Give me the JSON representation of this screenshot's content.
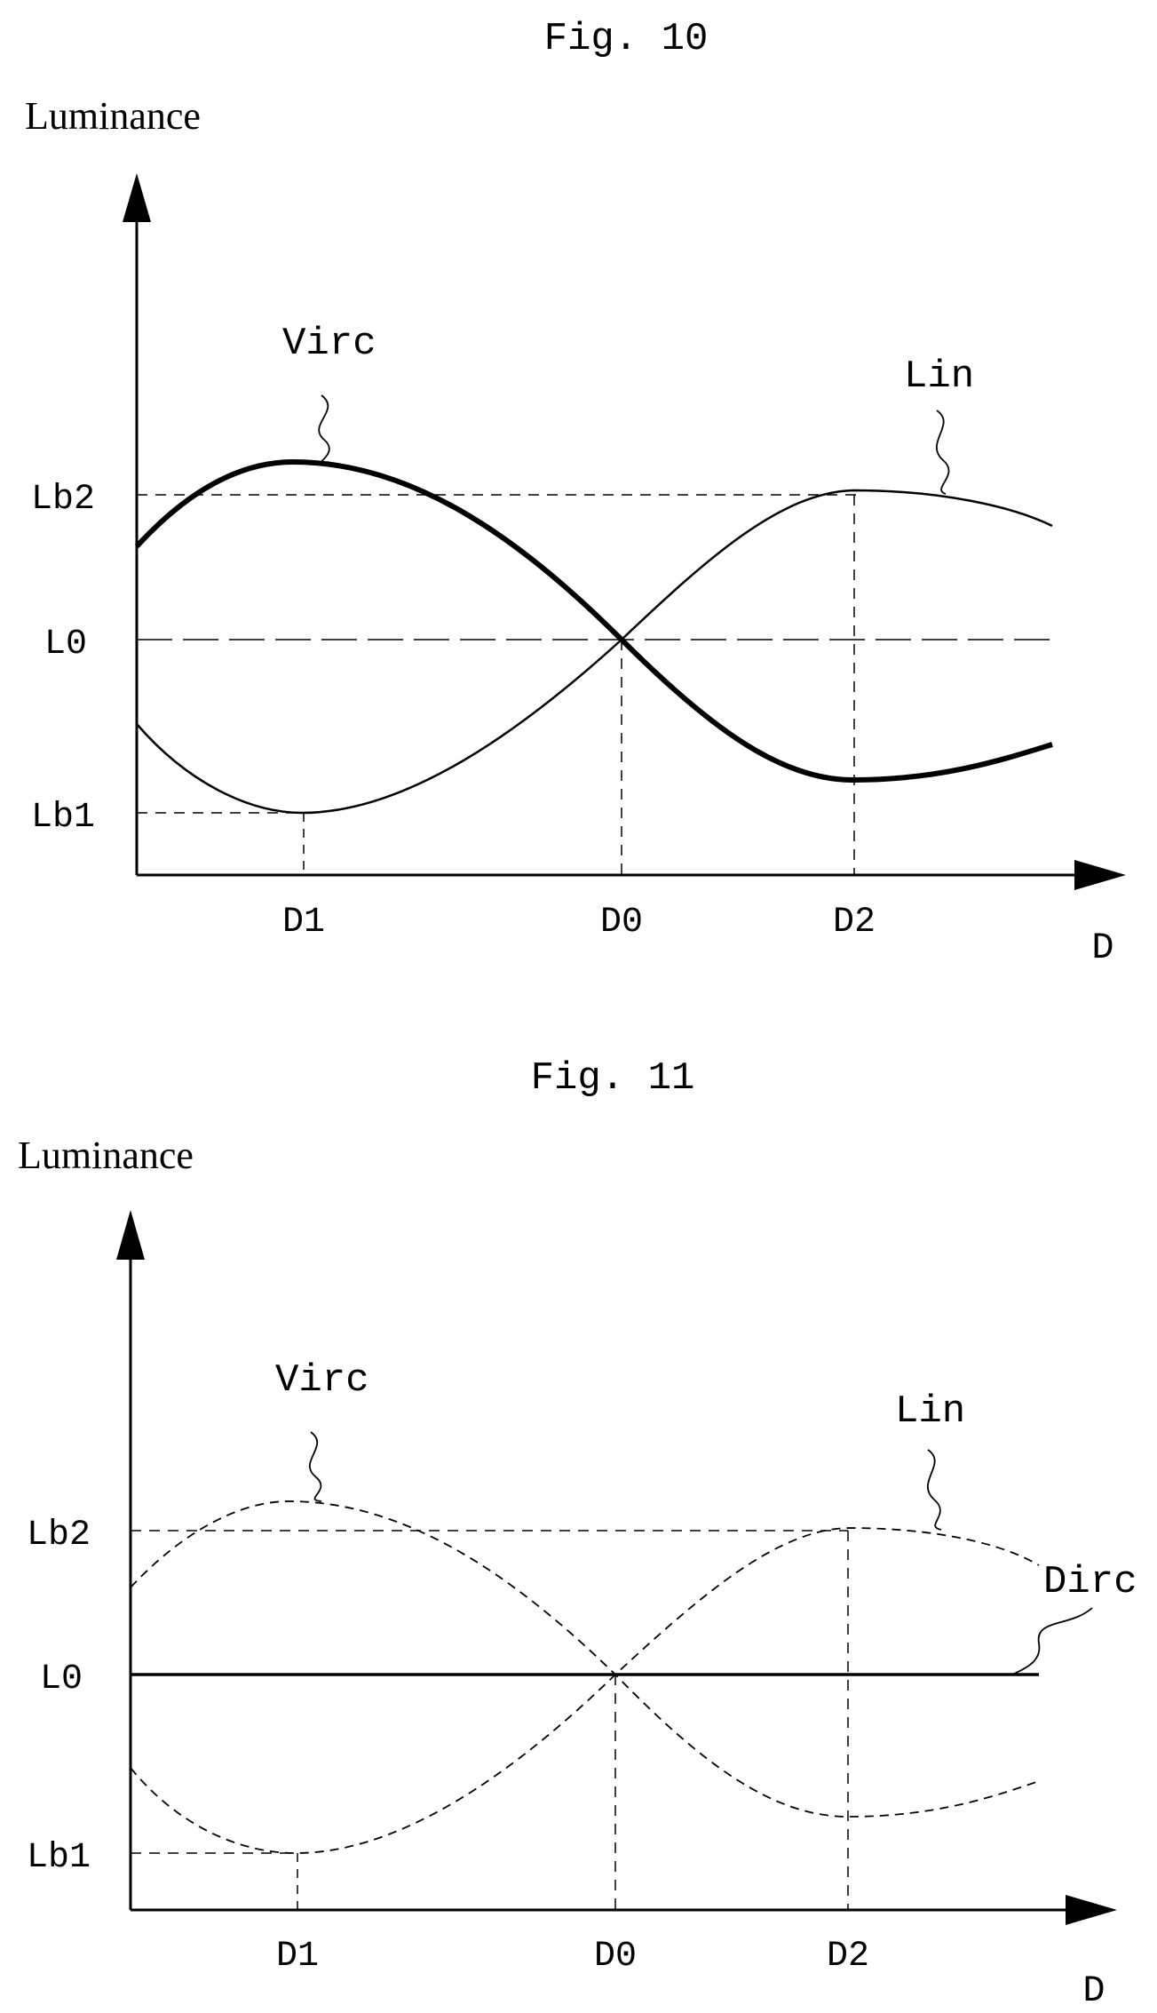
{
  "figures": [
    {
      "title": "Fig. 10",
      "y_axis_label": "Luminance",
      "x_axis_label": "D",
      "y_ticks": [
        "Lb2",
        "L0",
        "Lb1"
      ],
      "x_ticks": [
        "D1",
        "D0",
        "D2"
      ],
      "curve_labels": [
        "Virc",
        "Lin"
      ],
      "line_styles": {
        "Virc": "solid-thick",
        "Lin": "solid-thin"
      }
    },
    {
      "title": "Fig. 11",
      "y_axis_label": "Luminance",
      "x_axis_label": "D",
      "y_ticks": [
        "Lb2",
        "L0",
        "Lb1"
      ],
      "x_ticks": [
        "D1",
        "D0",
        "D2"
      ],
      "curve_labels": [
        "Virc",
        "Lin",
        "Dirc"
      ],
      "line_styles": {
        "Virc": "dashed",
        "Lin": "dashed",
        "Dirc": "solid"
      }
    }
  ],
  "colors": {
    "ink": "#000000",
    "background": "#ffffff"
  }
}
